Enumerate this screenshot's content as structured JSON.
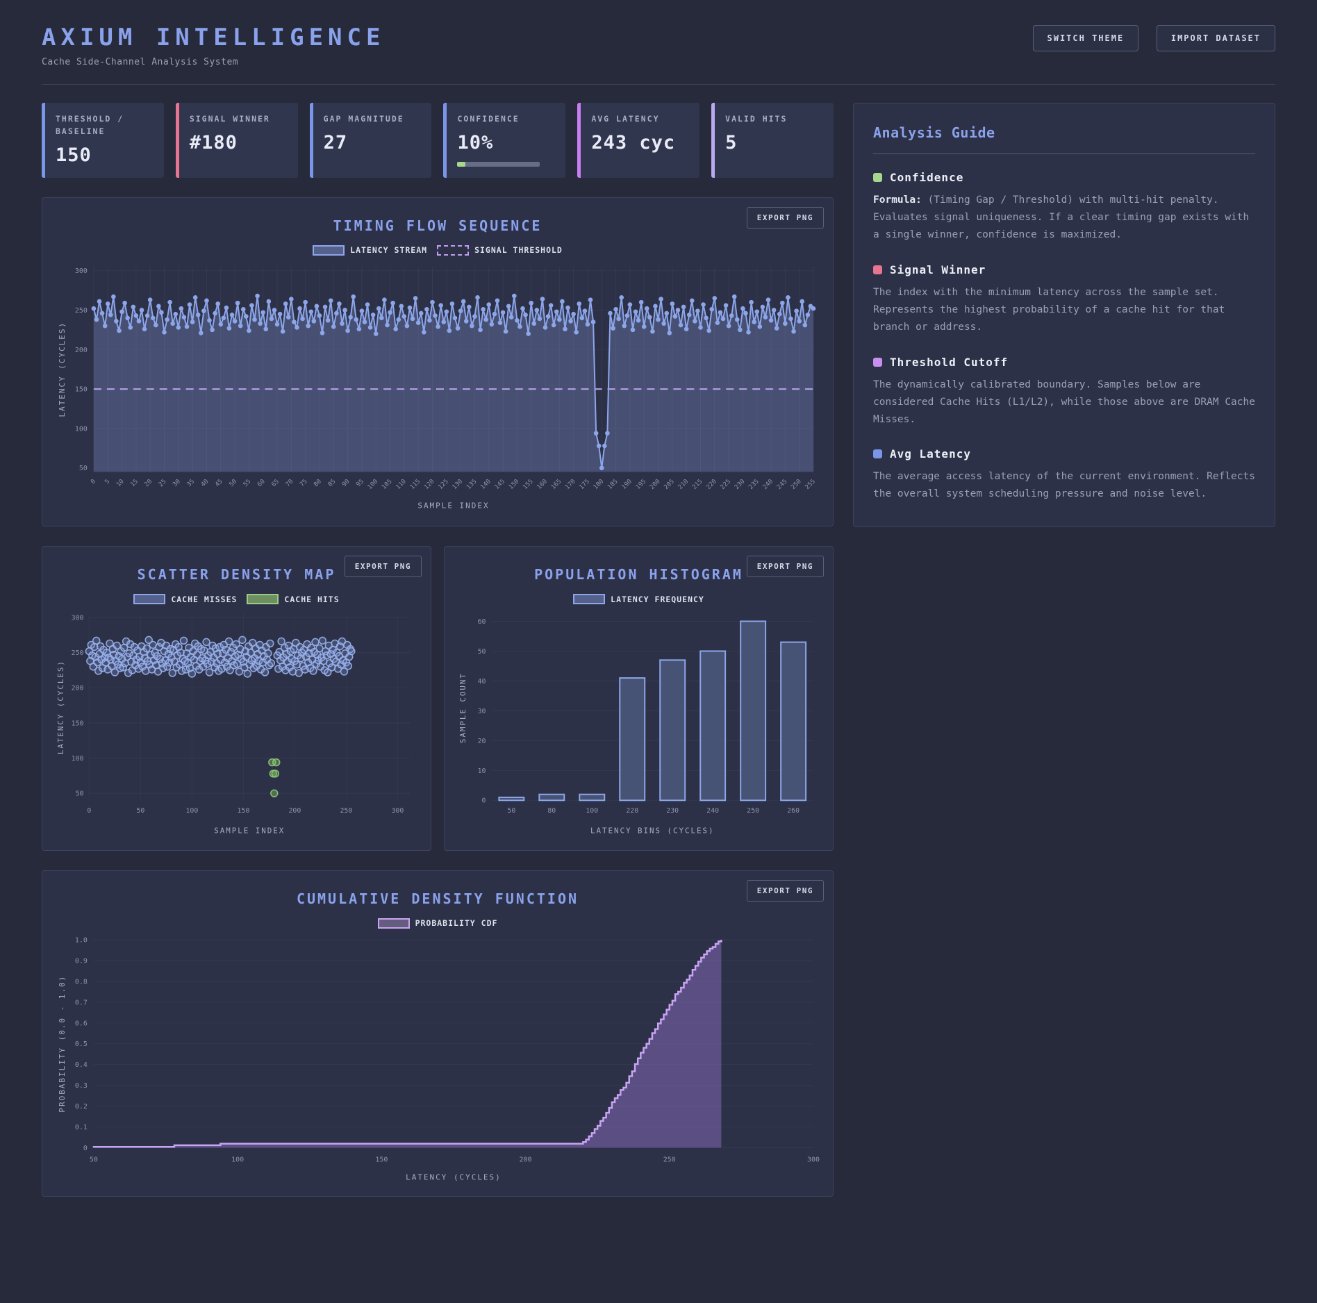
{
  "header": {
    "title": "AXIUM INTELLIGENCE",
    "subtitle": "Cache Side-Channel Analysis System",
    "switch_theme_label": "SWITCH THEME",
    "import_dataset_label": "IMPORT DATASET"
  },
  "export_label": "EXPORT PNG",
  "stats": [
    {
      "label": "THRESHOLD / BASELINE",
      "value": "150",
      "accent": "#7b96e8"
    },
    {
      "label": "SIGNAL WINNER",
      "value": "#180",
      "accent": "#e8758f"
    },
    {
      "label": "GAP MAGNITUDE",
      "value": "27",
      "accent": "#7b96e8"
    },
    {
      "label": "CONFIDENCE",
      "value": "10%",
      "accent": "#7b96e8",
      "progress_pct": 10
    },
    {
      "label": "AVG LATENCY",
      "value": "243 cyc",
      "accent": "#c77ef0"
    },
    {
      "label": "VALID HITS",
      "value": "5",
      "accent": "#b9aaf0"
    }
  ],
  "guide": {
    "title": "Analysis Guide",
    "sections": [
      {
        "bullet": "#a5d78c",
        "heading": "Confidence",
        "lead": "Formula:",
        "text": " (Timing Gap / Threshold) with multi-hit penalty.\nEvaluates signal uniqueness. If a clear timing gap exists with a single winner, confidence is maximized."
      },
      {
        "bullet": "#e8758f",
        "heading": "Signal Winner",
        "text": "The index with the minimum latency across the sample set. Represents the highest probability of a cache hit for that branch or address."
      },
      {
        "bullet": "#c98ff0",
        "heading": "Threshold Cutoff",
        "text": "The dynamically calibrated boundary. Samples below are considered Cache Hits (L1/L2), while those above are DRAM Cache Misses."
      },
      {
        "bullet": "#7b96e8",
        "heading": "Avg Latency",
        "text": "The average access latency of the current environment. Reflects the overall system scheduling pressure and noise level."
      }
    ]
  },
  "colors": {
    "accent_blue": "#8aa2ec",
    "line_blue": "#8da6ea",
    "area_steel": "#4e5a80",
    "threshold_purple": "#b9a2ec",
    "hit_green": "#8fca79",
    "hit_green_fill": "#7cb85e",
    "miss_blue_stroke": "#9ab2ee",
    "miss_blue_fill": "#7c92cc",
    "bar_fill": "#4a5678",
    "cdf_line": "#c8a4f2",
    "cdf_fill": "#8a6cc0",
    "grid": "#cdd3ea",
    "confidence_green": "#a8d88a"
  },
  "chart_data": [
    {
      "type": "line",
      "title": "TIMING FLOW SEQUENCE",
      "legend": [
        "LATENCY STREAM",
        "SIGNAL THRESHOLD"
      ],
      "xlabel": "SAMPLE INDEX",
      "ylabel": "LATENCY (CYCLES)",
      "ylim": [
        45,
        305
      ],
      "yticks": [
        50,
        100,
        150,
        200,
        250,
        300
      ],
      "x_max": 255,
      "xtick_step": 5,
      "threshold": 150,
      "values": [
        252,
        238,
        261,
        246,
        230,
        258,
        244,
        267,
        236,
        224,
        248,
        259,
        240,
        228,
        254,
        243,
        236,
        250,
        226,
        243,
        263,
        240,
        231,
        255,
        247,
        222,
        238,
        260,
        233,
        245,
        228,
        252,
        241,
        229,
        257,
        235,
        266,
        244,
        221,
        249,
        262,
        237,
        225,
        246,
        258,
        232,
        240,
        253,
        227,
        244,
        236,
        259,
        230,
        251,
        242,
        224,
        256,
        238,
        268,
        233,
        247,
        226,
        261,
        239,
        250,
        232,
        245,
        223,
        258,
        241,
        264,
        235,
        228,
        252,
        239,
        260,
        230,
        248,
        236,
        255,
        243,
        221,
        254,
        237,
        262,
        229,
        246,
        258,
        233,
        250,
        224,
        241,
        267,
        238,
        226,
        249,
        235,
        257,
        228,
        244,
        220,
        252,
        240,
        263,
        231,
        247,
        259,
        226,
        238,
        255,
        242,
        230,
        253,
        239,
        265,
        234,
        246,
        222,
        251,
        237,
        260,
        243,
        229,
        256,
        235,
        248,
        224,
        258,
        240,
        227,
        249,
        261,
        236,
        254,
        230,
        242,
        266,
        225,
        251,
        238,
        257,
        232,
        245,
        262,
        234,
        247,
        223,
        255,
        241,
        268,
        237,
        229,
        252,
        244,
        220,
        259,
        233,
        250,
        239,
        264,
        228,
        242,
        256,
        231,
        248,
        238,
        261,
        226,
        253,
        236,
        245,
        222,
        258,
        240,
        249,
        232,
        263,
        235,
        94,
        78,
        50,
        78,
        94,
        246,
        227,
        251,
        239,
        266,
        230,
        243,
        257,
        225,
        248,
        237,
        260,
        229,
        252,
        241,
        223,
        255,
        238,
        264,
        233,
        246,
        221,
        258,
        242,
        250,
        231,
        254,
        226,
        244,
        262,
        236,
        249,
        228,
        257,
        240,
        224,
        251,
        265,
        234,
        247,
        239,
        256,
        230,
        243,
        267,
        238,
        225,
        252,
        246,
        222,
        260,
        235,
        248,
        229,
        254,
        241,
        263,
        237,
        250,
        227,
        245,
        259,
        233,
        266,
        239,
        223,
        249,
        236,
        261,
        231,
        244,
        255,
        252
      ]
    },
    {
      "type": "scatter",
      "title": "SCATTER DENSITY MAP",
      "legend": [
        "CACHE MISSES",
        "CACHE HITS"
      ],
      "xlabel": "SAMPLE INDEX",
      "ylabel": "LATENCY (CYCLES)",
      "xlim": [
        0,
        312
      ],
      "ylim": [
        40,
        305
      ],
      "xticks": [
        0,
        50,
        100,
        150,
        200,
        250,
        300
      ],
      "yticks": [
        50,
        100,
        150,
        200,
        250,
        300
      ],
      "threshold": 150,
      "series_ref": "uses chart_data[0].values as (index, latency) points; points below threshold are cache hits"
    },
    {
      "type": "bar",
      "title": "POPULATION HISTOGRAM",
      "legend": [
        "LATENCY FREQUENCY"
      ],
      "xlabel": "LATENCY BINS (CYCLES)",
      "ylabel": "SAMPLE COUNT",
      "categories": [
        50,
        80,
        100,
        220,
        230,
        240,
        250,
        260
      ],
      "values": [
        1,
        2,
        2,
        41,
        47,
        50,
        60,
        53
      ],
      "ylim": [
        0,
        62
      ],
      "yticks": [
        0,
        10,
        20,
        30,
        40,
        50,
        60
      ]
    },
    {
      "type": "step",
      "title": "CUMULATIVE DENSITY FUNCTION",
      "legend": [
        "PROBABILITY CDF"
      ],
      "xlabel": "LATENCY (CYCLES)",
      "ylabel": "PROBABILITY (0.0 - 1.0)",
      "xlim": [
        50,
        300
      ],
      "ylim": [
        0,
        1
      ],
      "xticks": [
        50,
        100,
        150,
        200,
        250,
        300
      ],
      "yticks": [
        0,
        0.1,
        0.2,
        0.3,
        0.4,
        0.5,
        0.6,
        0.7,
        0.8,
        0.9,
        1.0
      ],
      "series_ref": "empirical CDF of chart_data[0].values"
    }
  ]
}
